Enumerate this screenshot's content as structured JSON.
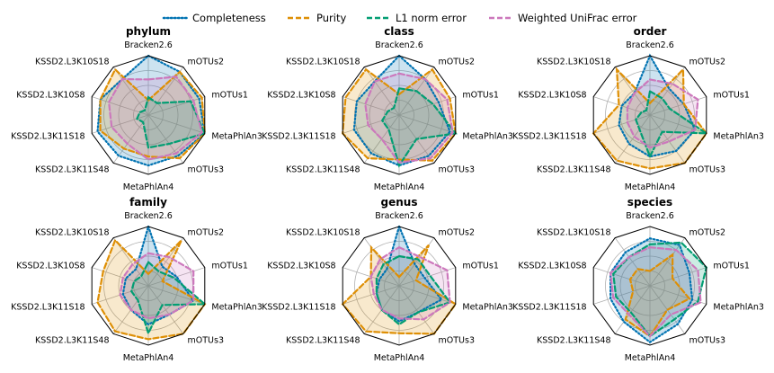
{
  "legend": {
    "placement": "top-center",
    "items": [
      {
        "name": "Completeness",
        "color": "#0173b2",
        "dash": "dotted"
      },
      {
        "name": "Purity",
        "color": "#de8f05",
        "dash": "dashed"
      },
      {
        "name": "L1 norm error",
        "color": "#029e73",
        "dash": "dashed"
      },
      {
        "name": "Weighted UniFrac error",
        "color": "#cc78bc",
        "dash": "dashed"
      }
    ]
  },
  "chart_data": [
    {
      "type": "radar",
      "title": "phylum",
      "categories": [
        "Bracken2.6",
        "mOTUs2",
        "mOTUs1",
        "MetaPhlAn3",
        "mOTUs3",
        "MetaPhlAn4",
        "KSSD2.L3K11S48",
        "KSSD2.L3K11S18",
        "KSSD2.L3K10S8",
        "KSSD2.L3K10S18"
      ],
      "rlim": [
        0,
        1
      ],
      "grid": true,
      "series": [
        {
          "name": "Completeness",
          "values": [
            1.0,
            0.9,
            0.9,
            1.0,
            0.85,
            0.85,
            0.85,
            0.9,
            0.85,
            0.75
          ]
        },
        {
          "name": "Purity",
          "values": [
            0.25,
            0.9,
            0.95,
            1.0,
            0.9,
            0.7,
            0.7,
            0.85,
            0.85,
            0.95
          ]
        },
        {
          "name": "L1 norm error",
          "values": [
            0.3,
            0.25,
            0.75,
            1.0,
            0.6,
            0.55,
            0.15,
            0.2,
            0.15,
            0.1
          ]
        },
        {
          "name": "Weighted UniFrac error",
          "values": [
            0.6,
            0.8,
            0.8,
            0.95,
            0.8,
            0.75,
            0.6,
            0.65,
            0.7,
            0.75
          ]
        }
      ]
    },
    {
      "type": "radar",
      "title": "class",
      "categories": [
        "Bracken2.6",
        "mOTUs2",
        "mOTUs1",
        "MetaPhlAn3",
        "mOTUs3",
        "MetaPhlAn4",
        "KSSD2.L3K11S48",
        "KSSD2.L3K11S18",
        "KSSD2.L3K10S8",
        "KSSD2.L3K10S18"
      ],
      "rlim": [
        0,
        1
      ],
      "grid": true,
      "series": [
        {
          "name": "Completeness",
          "values": [
            1.0,
            0.75,
            0.7,
            0.9,
            0.85,
            0.85,
            0.8,
            0.8,
            0.75,
            0.7
          ]
        },
        {
          "name": "Purity",
          "values": [
            0.35,
            0.95,
            0.9,
            1.0,
            0.95,
            0.75,
            0.9,
            1.0,
            0.95,
            0.95
          ]
        },
        {
          "name": "L1 norm error",
          "values": [
            0.45,
            0.5,
            0.6,
            1.0,
            0.5,
            0.85,
            0.3,
            0.3,
            0.2,
            0.15
          ]
        },
        {
          "name": "Weighted UniFrac error",
          "values": [
            0.7,
            0.75,
            0.85,
            0.95,
            0.9,
            0.8,
            0.5,
            0.55,
            0.6,
            0.7
          ]
        }
      ]
    },
    {
      "type": "radar",
      "title": "order",
      "categories": [
        "Bracken2.6",
        "mOTUs2",
        "mOTUs1",
        "MetaPhlAn3",
        "mOTUs3",
        "MetaPhlAn4",
        "KSSD2.L3K11S48",
        "KSSD2.L3K11S18",
        "KSSD2.L3K10S8",
        "KSSD2.L3K10S18"
      ],
      "rlim": [
        0,
        1
      ],
      "grid": true,
      "series": [
        {
          "name": "Completeness",
          "values": [
            1.0,
            0.55,
            0.6,
            0.8,
            0.75,
            0.7,
            0.6,
            0.55,
            0.5,
            0.45
          ]
        },
        {
          "name": "Purity",
          "values": [
            0.2,
            0.95,
            0.6,
            1.0,
            1.0,
            0.9,
            0.95,
            1.0,
            0.55,
            0.95
          ]
        },
        {
          "name": "L1 norm error",
          "values": [
            0.4,
            0.35,
            0.35,
            1.0,
            0.35,
            0.7,
            0.3,
            0.25,
            0.15,
            0.1
          ]
        },
        {
          "name": "Weighted UniFrac error",
          "values": [
            0.6,
            0.65,
            0.85,
            0.8,
            0.55,
            0.55,
            0.45,
            0.4,
            0.4,
            0.45
          ]
        }
      ]
    },
    {
      "type": "radar",
      "title": "family",
      "categories": [
        "Bracken2.6",
        "mOTUs2",
        "mOTUs1",
        "MetaPhlAn3",
        "mOTUs3",
        "MetaPhlAn4",
        "KSSD2.L3K11S48",
        "KSSD2.L3K11S18",
        "KSSD2.L3K10S8",
        "KSSD2.L3K10S18"
      ],
      "rlim": [
        0,
        1
      ],
      "grid": true,
      "series": [
        {
          "name": "Completeness",
          "values": [
            1.0,
            0.4,
            0.5,
            0.8,
            0.6,
            0.65,
            0.5,
            0.45,
            0.4,
            0.35
          ]
        },
        {
          "name": "Purity",
          "values": [
            0.2,
            0.95,
            0.25,
            1.0,
            1.0,
            0.9,
            0.95,
            0.9,
            0.8,
            0.95
          ]
        },
        {
          "name": "L1 norm error",
          "values": [
            0.4,
            0.3,
            0.45,
            1.0,
            0.4,
            0.8,
            0.3,
            0.3,
            0.25,
            0.2
          ]
        },
        {
          "name": "Weighted UniFrac error",
          "values": [
            0.55,
            0.6,
            0.8,
            0.8,
            0.6,
            0.55,
            0.5,
            0.5,
            0.45,
            0.45
          ]
        }
      ]
    },
    {
      "type": "radar",
      "title": "genus",
      "categories": [
        "Bracken2.6",
        "mOTUs2",
        "mOTUs1",
        "MetaPhlAn3",
        "mOTUs3",
        "MetaPhlAn4",
        "KSSD2.L3K11S48",
        "KSSD2.L3K11S18",
        "KSSD2.L3K10S8",
        "KSSD2.L3K10S18"
      ],
      "rlim": [
        0,
        1
      ],
      "grid": true,
      "series": [
        {
          "name": "Completeness",
          "values": [
            1.0,
            0.45,
            0.45,
            0.75,
            0.55,
            0.6,
            0.5,
            0.4,
            0.35,
            0.35
          ]
        },
        {
          "name": "Purity",
          "values": [
            0.15,
            0.85,
            0.3,
            1.0,
            1.0,
            0.8,
            0.95,
            1.0,
            0.5,
            0.8
          ]
        },
        {
          "name": "L1 norm error",
          "values": [
            0.5,
            0.55,
            0.55,
            0.9,
            0.55,
            0.65,
            0.5,
            0.4,
            0.4,
            0.45
          ]
        },
        {
          "name": "Weighted UniFrac error",
          "values": [
            0.65,
            0.6,
            0.85,
            0.9,
            0.7,
            0.55,
            0.5,
            0.45,
            0.5,
            0.55
          ]
        }
      ]
    },
    {
      "type": "radar",
      "title": "species",
      "categories": [
        "Bracken2.6",
        "mOTUs2",
        "mOTUs1",
        "MetaPhlAn3",
        "mOTUs3",
        "MetaPhlAn4",
        "KSSD2.L3K11S48",
        "KSSD2.L3K11S18",
        "KSSD2.L3K10S8",
        "KSSD2.L3K10S18"
      ],
      "rlim": [
        0,
        1
      ],
      "grid": true,
      "series": [
        {
          "name": "Completeness",
          "values": [
            0.8,
            0.85,
            0.7,
            0.75,
            0.8,
            0.95,
            0.75,
            0.7,
            0.7,
            0.7
          ]
        },
        {
          "name": "Purity",
          "values": [
            0.25,
            0.65,
            0.4,
            0.7,
            0.5,
            0.85,
            0.7,
            0.3,
            0.35,
            0.35
          ]
        },
        {
          "name": "L1 norm error",
          "values": [
            0.7,
            0.9,
            1.0,
            0.85,
            0.7,
            0.85,
            0.55,
            0.6,
            0.65,
            0.6
          ]
        },
        {
          "name": "Weighted UniFrac error",
          "values": [
            0.65,
            0.75,
            0.85,
            0.9,
            0.6,
            0.85,
            0.6,
            0.65,
            0.7,
            0.6
          ]
        }
      ]
    }
  ]
}
